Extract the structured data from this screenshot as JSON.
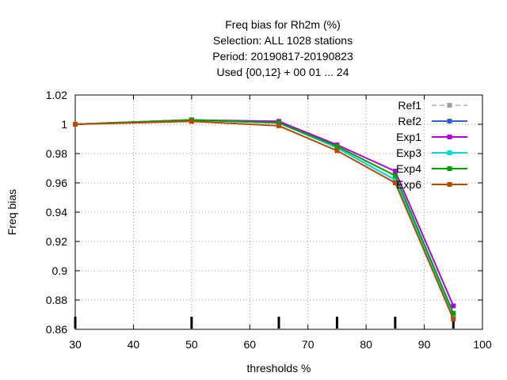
{
  "chart_data": {
    "type": "line",
    "title_lines": [
      "Freq bias  for Rh2m (%)",
      "Selection: ALL    1028 stations",
      "Period: 20190817-20190823",
      "Used {00,12} + 00 01 ... 24"
    ],
    "xlabel": "thresholds %",
    "ylabel": "Freq bias",
    "xlim": [
      30,
      100
    ],
    "ylim": [
      0.86,
      1.02
    ],
    "xticks": [
      30,
      40,
      50,
      60,
      70,
      80,
      90,
      100
    ],
    "yticks": [
      0.86,
      0.88,
      0.9,
      0.92,
      0.94,
      0.96,
      0.98,
      1,
      1.02
    ],
    "ytick_labels": [
      "0.86",
      "0.88",
      "0.9",
      "0.92",
      "0.94",
      "0.96",
      "0.98",
      "1",
      "1.02"
    ],
    "grid": true,
    "legend_position": "top-right",
    "x": [
      30,
      50,
      65,
      75,
      85,
      95
    ],
    "series": [
      {
        "name": "Ref1",
        "color": "#a0a0a0",
        "dashed": true,
        "values": [
          1.0,
          1.003,
          1.001,
          0.984,
          0.962,
          0.869
        ]
      },
      {
        "name": "Ref2",
        "color": "#2f5fd0",
        "dashed": false,
        "values": [
          1.0,
          1.003,
          1.001,
          0.984,
          0.962,
          0.869
        ]
      },
      {
        "name": "Exp1",
        "color": "#b000d8",
        "dashed": false,
        "values": [
          1.0,
          1.003,
          1.002,
          0.986,
          0.968,
          0.876
        ]
      },
      {
        "name": "Exp3",
        "color": "#00d8d8",
        "dashed": false,
        "values": [
          1.0,
          1.003,
          1.001,
          0.984,
          0.962,
          0.869
        ]
      },
      {
        "name": "Exp4",
        "color": "#00a000",
        "dashed": false,
        "values": [
          1.0,
          1.003,
          1.001,
          0.985,
          0.965,
          0.871
        ]
      },
      {
        "name": "Exp6",
        "color": "#b84a00",
        "dashed": false,
        "values": [
          1.0,
          1.002,
          0.999,
          0.982,
          0.96,
          0.867
        ]
      }
    ]
  }
}
